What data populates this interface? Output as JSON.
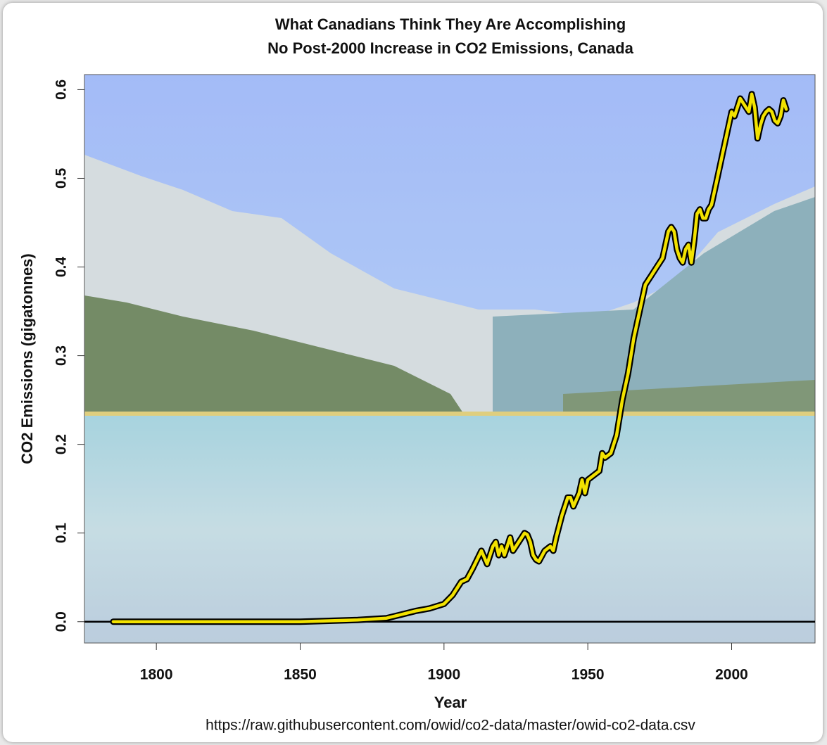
{
  "chart_data": {
    "type": "line",
    "title": "What Canadians Think They Are Accomplishing",
    "subtitle": "No Post-2000 Increase in CO2 Emissions, Canada",
    "x_label": "Year",
    "y_label": "CO2 Emissions (gigatonnes)",
    "source": "https://raw.githubusercontent.com/owid/co2-data/master/owid-co2-data.csv",
    "x": [
      1785,
      1800,
      1850,
      1860,
      1870,
      1880,
      1885,
      1890,
      1895,
      1900,
      1903,
      1906,
      1908,
      1910,
      1913,
      1915,
      1917,
      1918,
      1919,
      1920,
      1921,
      1923,
      1924,
      1926,
      1928,
      1929,
      1930,
      1931,
      1932,
      1933,
      1935,
      1937,
      1938,
      1939,
      1941,
      1943,
      1944,
      1945,
      1947,
      1948,
      1949,
      1950,
      1952,
      1954,
      1955,
      1956,
      1958,
      1960,
      1962,
      1964,
      1966,
      1968,
      1970,
      1972,
      1974,
      1976,
      1978,
      1979,
      1980,
      1981,
      1982,
      1983,
      1984,
      1985,
      1986,
      1987,
      1988,
      1989,
      1990,
      1991,
      1992,
      1993,
      1995,
      1997,
      1999,
      2000,
      2001,
      2002,
      2003,
      2004,
      2005,
      2006,
      2007,
      2008,
      2009,
      2010,
      2011,
      2012,
      2013,
      2014,
      2015,
      2016,
      2017,
      2018,
      2019
    ],
    "series": [
      {
        "name": "CO2 Emissions",
        "color": "#f2e200",
        "outline_color": "#000000",
        "values": [
          0,
          0,
          0,
          0.001,
          0.002,
          0.004,
          0.008,
          0.012,
          0.015,
          0.02,
          0.03,
          0.045,
          0.048,
          0.06,
          0.08,
          0.065,
          0.085,
          0.09,
          0.075,
          0.085,
          0.075,
          0.095,
          0.08,
          0.09,
          0.1,
          0.098,
          0.09,
          0.075,
          0.07,
          0.068,
          0.08,
          0.085,
          0.08,
          0.095,
          0.12,
          0.14,
          0.14,
          0.13,
          0.145,
          0.16,
          0.145,
          0.16,
          0.165,
          0.17,
          0.19,
          0.185,
          0.19,
          0.21,
          0.25,
          0.28,
          0.32,
          0.35,
          0.38,
          0.39,
          0.4,
          0.41,
          0.44,
          0.445,
          0.44,
          0.42,
          0.41,
          0.405,
          0.42,
          0.425,
          0.405,
          0.43,
          0.46,
          0.465,
          0.455,
          0.455,
          0.465,
          0.47,
          0.5,
          0.53,
          0.56,
          0.575,
          0.57,
          0.58,
          0.59,
          0.585,
          0.58,
          0.575,
          0.595,
          0.58,
          0.545,
          0.56,
          0.57,
          0.575,
          0.578,
          0.575,
          0.565,
          0.562,
          0.57,
          0.588,
          0.578
        ]
      }
    ],
    "reference_line": 0,
    "xlim": [
      1775,
      2029
    ],
    "ylim": [
      -0.024,
      0.617
    ],
    "xticks": [
      1800,
      1850,
      1900,
      1950,
      2000
    ],
    "yticks": [
      {
        "value": 0,
        "label": "0.0"
      },
      0.1,
      0.2,
      0.3,
      0.4,
      0.5,
      0.6
    ]
  }
}
